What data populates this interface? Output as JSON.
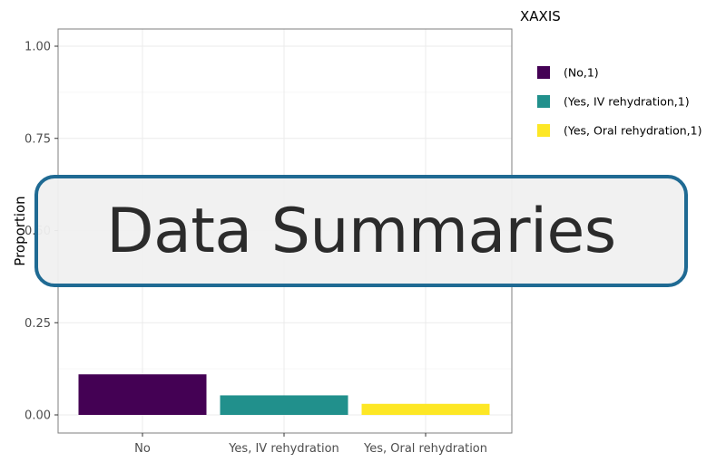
{
  "chart_data": {
    "type": "bar",
    "categories": [
      "No",
      "Yes, IV rehydration",
      "Yes, Oral rehydration"
    ],
    "series": [
      {
        "name": "(No,1)",
        "values": [
          0.11,
          null,
          null
        ]
      },
      {
        "name": "(Yes, IV rehydration,1)",
        "values": [
          null,
          0.053,
          null
        ]
      },
      {
        "name": "(Yes, Oral rehydration,1)",
        "values": [
          null,
          null,
          0.03
        ]
      }
    ],
    "values": [
      0.11,
      0.053,
      0.03
    ],
    "colors": [
      "#440154",
      "#21908c",
      "#fde725"
    ],
    "ylabel": "Proportion",
    "xlabel": "",
    "ylim": [
      0,
      1
    ],
    "yticks": [
      "0.00",
      "0.25",
      "0.50",
      "0.75",
      "1.00"
    ],
    "ytick_values": [
      0,
      0.25,
      0.5,
      0.75,
      1.0
    ],
    "grid": true,
    "legend": {
      "title": "XAXIS",
      "position": "right",
      "entries": [
        "(No,1)",
        "(Yes, IV rehydration,1)",
        "(Yes, Oral rehydration,1)"
      ]
    }
  },
  "overlay": {
    "text": "Data Summaries"
  }
}
